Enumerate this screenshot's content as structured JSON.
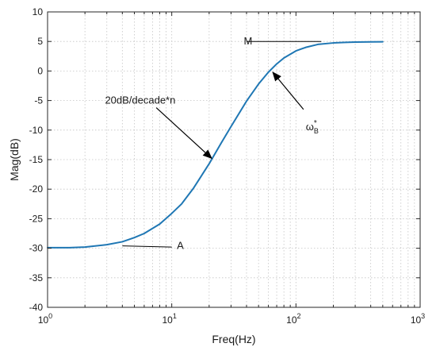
{
  "chart_data": {
    "type": "line",
    "xlabel": "Freq(Hz)",
    "ylabel": "Mag(dB)",
    "x_scale": "log",
    "xlim": [
      1,
      1000
    ],
    "ylim": [
      -40,
      10
    ],
    "grid": true,
    "x_tick_values": [
      1,
      10,
      100,
      1000
    ],
    "x_tick_labels": [
      {
        "base": "10",
        "exp": "0"
      },
      {
        "base": "10",
        "exp": "1"
      },
      {
        "base": "10",
        "exp": "2"
      },
      {
        "base": "10",
        "exp": "3"
      }
    ],
    "y_ticks": [
      -40,
      -35,
      -30,
      -25,
      -20,
      -15,
      -10,
      -5,
      0,
      5,
      10
    ],
    "series": [
      {
        "color": "#1f77b4",
        "x": [
          1,
          1.5,
          2,
          3,
          4,
          5,
          6,
          8,
          10,
          12,
          15,
          20,
          25,
          30,
          40,
          50,
          60,
          70,
          80,
          100,
          120,
          150,
          200,
          250,
          300,
          400,
          500
        ],
        "y": [
          -29.9,
          -29.9,
          -29.8,
          -29.4,
          -28.9,
          -28.2,
          -27.5,
          -25.9,
          -24.1,
          -22.5,
          -19.8,
          -15.7,
          -12.2,
          -9.4,
          -5.1,
          -2.2,
          -0.2,
          1.2,
          2.2,
          3.4,
          4.0,
          4.5,
          4.75,
          4.85,
          4.9,
          4.93,
          4.95
        ]
      }
    ],
    "annotations": [
      {
        "text": "M",
        "x": 38,
        "y": 5,
        "line_x": [
          40,
          160
        ],
        "line_y": [
          5,
          5
        ]
      },
      {
        "text": "A",
        "x": 11,
        "y": -29.6,
        "line_x": [
          4,
          10
        ],
        "line_y": [
          -29.6,
          -29.8
        ]
      },
      {
        "text": "20dB/decade*n",
        "x": 2.9,
        "y": -5,
        "arrow_from": [
          7.5,
          -6.2
        ],
        "arrow_to": [
          21,
          -14.8
        ]
      },
      {
        "text": "ω",
        "subscript": "B",
        "superscript": "*",
        "x": 120,
        "y": -9.5,
        "arrow_from": [
          115,
          -6.5
        ],
        "arrow_to": [
          65,
          -0.2
        ]
      }
    ]
  }
}
